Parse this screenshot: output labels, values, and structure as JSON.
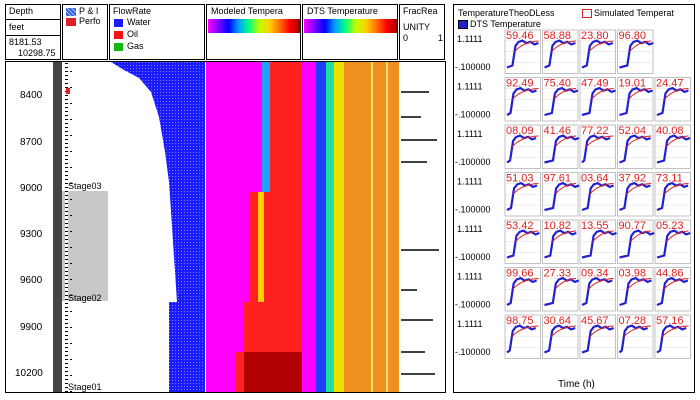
{
  "depth_track": {
    "title": "Depth",
    "unit": "feet",
    "top_value": "8181.53",
    "bottom_value": "10298.75",
    "ticks": [
      "8400",
      "8700",
      "9000",
      "9300",
      "9600",
      "9900",
      "10200"
    ]
  },
  "stages": [
    "Stage03",
    "Stage02",
    "Stage01"
  ],
  "perf_track": {
    "legend": [
      {
        "label": "P & I",
        "color": "#2b5fd9",
        "icon": "blue-hatch-swatch"
      },
      {
        "label": "Perfo",
        "color": "#e02020",
        "icon": "red-swatch"
      }
    ]
  },
  "flowrate_track": {
    "title": "FlowRate",
    "legend": [
      {
        "label": "Water",
        "color": "#1a1aff"
      },
      {
        "label": "Oil",
        "color": "#ff1010"
      },
      {
        "label": "Gas",
        "color": "#10b810"
      }
    ]
  },
  "modeled_track": {
    "title": "Modeled Tempera"
  },
  "dts_track": {
    "title": "DTS Temperature"
  },
  "frac_track": {
    "title": "FracRea",
    "unit": "UNITY",
    "min": "0",
    "max": "1"
  },
  "grid_panel": {
    "title": "TemperatureTheoDLess",
    "legend": [
      {
        "label": "Simulated Temperat",
        "color": "#e02020"
      },
      {
        "label": "DTS Temperature",
        "color": "#2020d0"
      }
    ],
    "y_top_label": "1.1111",
    "y_bottom_label": "-.100000",
    "x_axis_label": "Time (h)",
    "values": [
      [
        "59.46",
        "58.88",
        "23.80",
        "96.80",
        ""
      ],
      [
        "92.49",
        "75.40",
        "47.49",
        "19.01",
        "24.47"
      ],
      [
        "08.09",
        "41.46",
        "77.22",
        "52.04",
        "40.08"
      ],
      [
        "51.03",
        "97.61",
        "03.64",
        "37.92",
        "73.11"
      ],
      [
        "53.42",
        "10.82",
        "13.55",
        "90.77",
        "05.23"
      ],
      [
        "99.66",
        "27.33",
        "09.34",
        "03.98",
        "44.86"
      ],
      [
        "98.75",
        "30.64",
        "45.67",
        "07.28",
        "57.16"
      ]
    ]
  }
}
